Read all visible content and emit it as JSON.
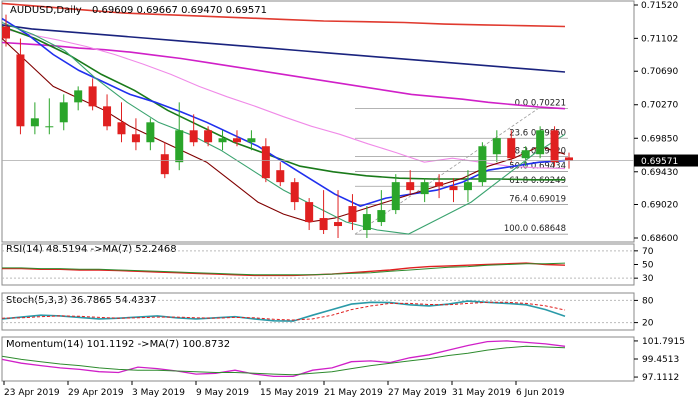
{
  "panels": {
    "main": {
      "title": "AUDUSD,Daily",
      "ohlc": "0.69609 0.69667 0.69470 0.69571"
    },
    "rsi": {
      "title": "RSI(14) 48.5194 ->MA(7) 52.2468"
    },
    "stoch": {
      "title": "Stoch(5,3,3) 36.7865 54.4337"
    },
    "momentum": {
      "title": "Momentum(14) 101.1192 ->MA(7) 100.8732"
    }
  },
  "axes": {
    "price_ticks": [
      "0.71520",
      "0.71102",
      "0.70690",
      "0.70270",
      "0.69850",
      "0.69430",
      "0.69020",
      "0.68600"
    ],
    "current_price": "0.69571",
    "rsi_ticks": [
      "70",
      "50",
      "30"
    ],
    "stoch_ticks": [
      "80",
      "20"
    ],
    "momentum_ticks": [
      "101.7915",
      "99.4513",
      "97.1112"
    ],
    "date_ticks": [
      "23 Apr 2019",
      "29 Apr 2019",
      "3 May 2019",
      "9 May 2019",
      "15 May 2019",
      "21 May 2019",
      "27 May 2019",
      "31 May 2019",
      "6 Jun 2019"
    ]
  },
  "fibonacci": [
    {
      "label": "0.0 0.70221",
      "value": 0.70221
    },
    {
      "label": "23.6 0.69850",
      "value": 0.6985
    },
    {
      "label": "38.2 0.69620",
      "value": 0.6962
    },
    {
      "label": "50.0 0.69434",
      "value": 0.69434
    },
    {
      "label": "61.8 0.69249",
      "value": 0.69249
    },
    {
      "label": "76.4 0.69019",
      "value": 0.69019
    },
    {
      "label": "100.0 0.68648",
      "value": 0.68648
    }
  ],
  "chart_data": {
    "type": "candlestick",
    "ylim": [
      0.6855,
      0.7157
    ],
    "candles": [
      {
        "o": 0.7125,
        "h": 0.714,
        "l": 0.71,
        "c": 0.711
      },
      {
        "o": 0.709,
        "h": 0.711,
        "l": 0.699,
        "c": 0.7
      },
      {
        "o": 0.7,
        "h": 0.703,
        "l": 0.699,
        "c": 0.701
      },
      {
        "o": 0.7,
        "h": 0.7035,
        "l": 0.699,
        "c": 0.7
      },
      {
        "o": 0.7005,
        "h": 0.704,
        "l": 0.6995,
        "c": 0.703
      },
      {
        "o": 0.703,
        "h": 0.705,
        "l": 0.702,
        "c": 0.7045
      },
      {
        "o": 0.705,
        "h": 0.706,
        "l": 0.702,
        "c": 0.7025
      },
      {
        "o": 0.7025,
        "h": 0.704,
        "l": 0.6995,
        "c": 0.7
      },
      {
        "o": 0.7005,
        "h": 0.703,
        "l": 0.698,
        "c": 0.699
      },
      {
        "o": 0.699,
        "h": 0.701,
        "l": 0.697,
        "c": 0.698
      },
      {
        "o": 0.698,
        "h": 0.701,
        "l": 0.697,
        "c": 0.7005
      },
      {
        "o": 0.6965,
        "h": 0.698,
        "l": 0.6935,
        "c": 0.694
      },
      {
        "o": 0.6955,
        "h": 0.703,
        "l": 0.6945,
        "c": 0.6995
      },
      {
        "o": 0.6995,
        "h": 0.7015,
        "l": 0.6975,
        "c": 0.698
      },
      {
        "o": 0.6995,
        "h": 0.7,
        "l": 0.6975,
        "c": 0.698
      },
      {
        "o": 0.698,
        "h": 0.6995,
        "l": 0.697,
        "c": 0.6985
      },
      {
        "o": 0.6985,
        "h": 0.6995,
        "l": 0.6975,
        "c": 0.698
      },
      {
        "o": 0.698,
        "h": 0.6995,
        "l": 0.697,
        "c": 0.6985
      },
      {
        "o": 0.6975,
        "h": 0.6985,
        "l": 0.693,
        "c": 0.6935
      },
      {
        "o": 0.6945,
        "h": 0.6955,
        "l": 0.6925,
        "c": 0.693
      },
      {
        "o": 0.693,
        "h": 0.6935,
        "l": 0.6895,
        "c": 0.6905
      },
      {
        "o": 0.6905,
        "h": 0.691,
        "l": 0.687,
        "c": 0.688
      },
      {
        "o": 0.6885,
        "h": 0.692,
        "l": 0.6865,
        "c": 0.687
      },
      {
        "o": 0.688,
        "h": 0.692,
        "l": 0.686,
        "c": 0.6875
      },
      {
        "o": 0.69,
        "h": 0.6915,
        "l": 0.687,
        "c": 0.688
      },
      {
        "o": 0.687,
        "h": 0.69,
        "l": 0.686,
        "c": 0.689
      },
      {
        "o": 0.688,
        "h": 0.692,
        "l": 0.6875,
        "c": 0.6895
      },
      {
        "o": 0.6895,
        "h": 0.694,
        "l": 0.689,
        "c": 0.693
      },
      {
        "o": 0.693,
        "h": 0.6945,
        "l": 0.6915,
        "c": 0.692
      },
      {
        "o": 0.6915,
        "h": 0.6935,
        "l": 0.6905,
        "c": 0.693
      },
      {
        "o": 0.693,
        "h": 0.694,
        "l": 0.691,
        "c": 0.6925
      },
      {
        "o": 0.6925,
        "h": 0.6935,
        "l": 0.6905,
        "c": 0.692
      },
      {
        "o": 0.692,
        "h": 0.6945,
        "l": 0.6905,
        "c": 0.693
      },
      {
        "o": 0.693,
        "h": 0.698,
        "l": 0.6925,
        "c": 0.6975
      },
      {
        "o": 0.6965,
        "h": 0.6995,
        "l": 0.6955,
        "c": 0.6985
      },
      {
        "o": 0.6985,
        "h": 0.6995,
        "l": 0.6955,
        "c": 0.696
      },
      {
        "o": 0.696,
        "h": 0.6975,
        "l": 0.695,
        "c": 0.697
      },
      {
        "o": 0.6965,
        "h": 0.7,
        "l": 0.696,
        "c": 0.6995
      },
      {
        "o": 0.6995,
        "h": 0.7,
        "l": 0.695,
        "c": 0.6955
      },
      {
        "o": 0.6961,
        "h": 0.6967,
        "l": 0.6947,
        "c": 0.6957
      }
    ],
    "series": [
      {
        "name": "ma-red",
        "color": "#e03a2f",
        "values": [
          0.7154,
          0.715,
          0.7146,
          0.7142,
          0.714,
          0.7138,
          0.7136,
          0.7134,
          0.7132,
          0.7131,
          0.713,
          0.7128,
          0.7127,
          0.7126,
          0.7125
        ]
      },
      {
        "name": "ma-navy",
        "color": "#1a237e",
        "values": [
          0.7127,
          0.7122,
          0.7119,
          0.7116,
          0.7113,
          0.711,
          0.7107,
          0.7104,
          0.7101,
          0.7098,
          0.7095,
          0.7092,
          0.7089,
          0.7086,
          0.7083,
          0.708,
          0.7077,
          0.7074,
          0.7071,
          0.7068
        ]
      },
      {
        "name": "ma-magenta",
        "color": "#d020c8",
        "values": [
          0.7105,
          0.7103,
          0.7101,
          0.7098,
          0.7096,
          0.7093,
          0.7089,
          0.7085,
          0.708,
          0.7075,
          0.707,
          0.7065,
          0.706,
          0.7055,
          0.705,
          0.7045,
          0.704,
          0.7037,
          0.7034,
          0.703,
          0.7027,
          0.7024,
          0.7022
        ]
      },
      {
        "name": "ma-pink",
        "color": "#f08ae8",
        "values": [
          0.7122,
          0.7115,
          0.7108,
          0.71,
          0.709,
          0.7078,
          0.7065,
          0.705,
          0.7037,
          0.7025,
          0.7012,
          0.7,
          0.699,
          0.6978,
          0.6967,
          0.6955,
          0.696,
          0.6955,
          0.695,
          0.6948,
          0.6947
        ]
      },
      {
        "name": "ma-green",
        "color": "#1a7a1a",
        "values": [
          0.7125,
          0.711,
          0.709,
          0.7065,
          0.7045,
          0.702,
          0.7,
          0.698,
          0.6965,
          0.695,
          0.6943,
          0.6938,
          0.6935,
          0.6934,
          0.6934,
          0.6934,
          0.6933,
          0.6933
        ]
      },
      {
        "name": "ma-blue",
        "color": "#2030ee",
        "values": [
          0.7135,
          0.7115,
          0.709,
          0.707,
          0.7055,
          0.704,
          0.703,
          0.7018,
          0.7005,
          0.699,
          0.6975,
          0.6955,
          0.6935,
          0.6915,
          0.69,
          0.691,
          0.6915,
          0.692,
          0.693,
          0.6945,
          0.695,
          0.6955,
          0.6957
        ]
      },
      {
        "name": "ma-maroon",
        "color": "#800000",
        "values": [
          0.711,
          0.708,
          0.705,
          0.7035,
          0.702,
          0.7,
          0.6985,
          0.697,
          0.6955,
          0.693,
          0.6905,
          0.689,
          0.688,
          0.6885,
          0.6895,
          0.6905,
          0.6915,
          0.6925,
          0.6935,
          0.695,
          0.696,
          0.6975,
          0.6965
        ]
      },
      {
        "name": "ma-teal",
        "color": "#3aa36f",
        "values": [
          0.713,
          0.7115,
          0.7095,
          0.706,
          0.703,
          0.7005,
          0.699,
          0.697,
          0.6945,
          0.692,
          0.69,
          0.688,
          0.687,
          0.6865,
          0.6885,
          0.6905,
          0.6935,
          0.6965,
          0.699
        ]
      }
    ]
  }
}
